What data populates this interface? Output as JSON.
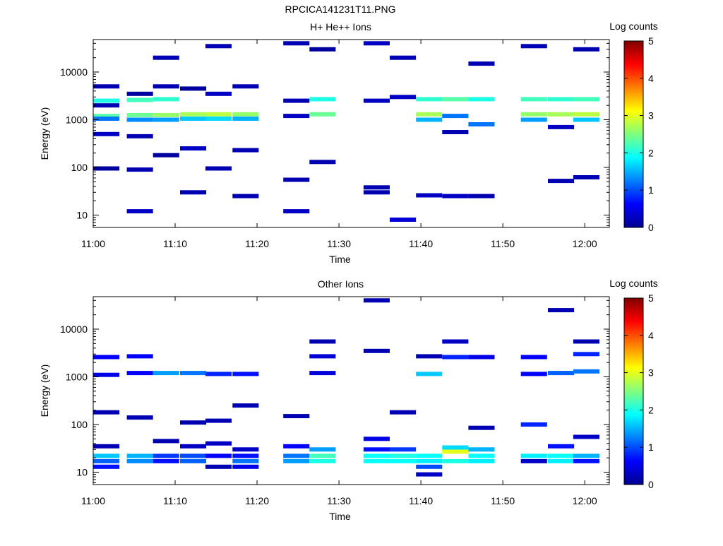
{
  "figure": {
    "title": "RPCICA141231T11.PNG"
  },
  "chart_data": [
    {
      "type": "heatmap",
      "title": "H+ He++ Ions",
      "xlabel": "Time",
      "ylabel": "Energy (eV)",
      "xlim": [
        "11:00",
        "12:03"
      ],
      "ylim": [
        5.5,
        48000
      ],
      "yscale": "log",
      "xticks": [
        "11:00",
        "11:10",
        "11:20",
        "11:30",
        "11:40",
        "11:50",
        "12:00"
      ],
      "yticks": [
        "10",
        "100",
        "1000",
        "10000"
      ],
      "colorbar": {
        "label": "Log counts",
        "range": [
          0,
          5
        ],
        "ticks": [
          "0",
          "1",
          "2",
          "3",
          "4",
          "5"
        ]
      },
      "time_bins_start_min": [
        0,
        4.1,
        7.3,
        10.6,
        13.7,
        17.0,
        23.2,
        26.4,
        29.6,
        33.0,
        36.2,
        39.4,
        42.6,
        45.8,
        49.0,
        52.2,
        55.5,
        58.6
      ],
      "bin_width_min": 3.2,
      "gaps": [
        "11:20-11:23",
        "11:49-11:52"
      ],
      "cells": [
        [
          0,
          2000,
          0.2
        ],
        [
          0,
          1200,
          2.3
        ],
        [
          0,
          1050,
          1.2
        ],
        [
          0,
          500,
          0.3
        ],
        [
          0,
          5000,
          0.2
        ],
        [
          0,
          2500,
          2.0
        ],
        [
          0,
          95,
          0.1
        ],
        [
          1,
          3500,
          0.1
        ],
        [
          1,
          2600,
          2.2
        ],
        [
          1,
          1250,
          2.4
        ],
        [
          1,
          1000,
          1.3
        ],
        [
          1,
          12,
          0.3
        ],
        [
          1,
          90,
          0.2
        ],
        [
          1,
          450,
          0.2
        ],
        [
          2,
          2700,
          2.1
        ],
        [
          2,
          1250,
          2.6
        ],
        [
          2,
          1000,
          1.4
        ],
        [
          2,
          5000,
          0.2
        ],
        [
          2,
          20000,
          0.2
        ],
        [
          2,
          180,
          0.1
        ],
        [
          3,
          1300,
          2.7
        ],
        [
          3,
          1050,
          1.6
        ],
        [
          3,
          4500,
          0.1
        ],
        [
          3,
          30,
          0.2
        ],
        [
          3,
          250,
          0.3
        ],
        [
          4,
          1300,
          2.8
        ],
        [
          4,
          1050,
          1.7
        ],
        [
          4,
          35000,
          0.2
        ],
        [
          4,
          3500,
          0.3
        ],
        [
          4,
          95,
          0.2
        ],
        [
          5,
          1300,
          2.6
        ],
        [
          5,
          1050,
          1.5
        ],
        [
          5,
          25,
          0.2
        ],
        [
          5,
          230,
          0.2
        ],
        [
          5,
          5000,
          0.2
        ],
        [
          6,
          1200,
          0.3
        ],
        [
          6,
          2500,
          0.2
        ],
        [
          6,
          12,
          0.3
        ],
        [
          6,
          55,
          0.2
        ],
        [
          6,
          40000,
          0.2
        ],
        [
          7,
          1300,
          2.4
        ],
        [
          7,
          2700,
          2.0
        ],
        [
          7,
          130,
          0.2
        ],
        [
          7,
          30000,
          0.1
        ],
        [
          9,
          38,
          0.2
        ],
        [
          9,
          30,
          0.2
        ],
        [
          9,
          2500,
          0.3
        ],
        [
          9,
          40000,
          0.3
        ],
        [
          10,
          8,
          0.4
        ],
        [
          10,
          3000,
          0.3
        ],
        [
          10,
          20000,
          0.2
        ],
        [
          11,
          1300,
          2.7
        ],
        [
          11,
          1000,
          1.5
        ],
        [
          11,
          2700,
          2.1
        ],
        [
          11,
          26,
          0.3
        ],
        [
          12,
          2700,
          2.3
        ],
        [
          12,
          1200,
          1.2
        ],
        [
          12,
          25,
          0.3
        ],
        [
          12,
          550,
          0.2
        ],
        [
          13,
          2700,
          2.0
        ],
        [
          13,
          800,
          1.2
        ],
        [
          13,
          25,
          0.2
        ],
        [
          13,
          15000,
          0.2
        ],
        [
          15,
          1300,
          2.6
        ],
        [
          15,
          1000,
          1.4
        ],
        [
          15,
          2700,
          2.2
        ],
        [
          15,
          35000,
          0.2
        ],
        [
          16,
          1300,
          2.7
        ],
        [
          16,
          2700,
          2.1
        ],
        [
          16,
          700,
          0.3
        ],
        [
          16,
          52,
          0.2
        ],
        [
          17,
          1300,
          2.8
        ],
        [
          17,
          2700,
          2.2
        ],
        [
          17,
          1000,
          1.6
        ],
        [
          17,
          30000,
          0.2
        ],
        [
          17,
          62,
          0.2
        ]
      ]
    },
    {
      "type": "heatmap",
      "title": "Other Ions",
      "xlabel": "Time",
      "ylabel": "Energy (eV)",
      "xlim": [
        "11:00",
        "12:03"
      ],
      "ylim": [
        5.5,
        48000
      ],
      "yscale": "log",
      "xticks": [
        "11:00",
        "11:10",
        "11:20",
        "11:30",
        "11:40",
        "11:50",
        "12:00"
      ],
      "yticks": [
        "10",
        "100",
        "1000",
        "10000"
      ],
      "colorbar": {
        "label": "Log counts",
        "range": [
          0,
          5
        ],
        "ticks": [
          "0",
          "1",
          "2",
          "3",
          "4",
          "5"
        ]
      },
      "time_bins_start_min": [
        0,
        4.1,
        7.3,
        10.6,
        13.7,
        17.0,
        23.2,
        26.4,
        29.6,
        33.0,
        36.2,
        39.4,
        42.6,
        45.8,
        49.0,
        52.2,
        55.5,
        58.6
      ],
      "bin_width_min": 3.2,
      "gaps": [
        "11:20-11:23",
        "11:49-11:52"
      ],
      "cells": [
        [
          0,
          22,
          1.6
        ],
        [
          0,
          17,
          1.1
        ],
        [
          0,
          13,
          0.7
        ],
        [
          0,
          2600,
          0.6
        ],
        [
          0,
          1100,
          0.5
        ],
        [
          0,
          35,
          0.2
        ],
        [
          0,
          180,
          0.2
        ],
        [
          1,
          22,
          1.5
        ],
        [
          1,
          17,
          1.3
        ],
        [
          1,
          2700,
          0.6
        ],
        [
          1,
          1200,
          0.6
        ],
        [
          1,
          140,
          0.2
        ],
        [
          2,
          22,
          0.9
        ],
        [
          2,
          17,
          0.7
        ],
        [
          2,
          1200,
          1.4
        ],
        [
          2,
          45,
          0.2
        ],
        [
          3,
          22,
          1.0
        ],
        [
          3,
          17,
          1.1
        ],
        [
          3,
          1200,
          1.2
        ],
        [
          3,
          35,
          0.3
        ],
        [
          3,
          110,
          0.2
        ],
        [
          4,
          40,
          0.3
        ],
        [
          4,
          22,
          0.6
        ],
        [
          4,
          13,
          0.2
        ],
        [
          4,
          1150,
          0.8
        ],
        [
          4,
          120,
          0.2
        ],
        [
          5,
          30,
          0.3
        ],
        [
          5,
          22,
          0.7
        ],
        [
          5,
          17,
          1.2
        ],
        [
          5,
          13,
          0.5
        ],
        [
          5,
          1150,
          0.7
        ],
        [
          5,
          250,
          0.2
        ],
        [
          6,
          35,
          0.6
        ],
        [
          6,
          22,
          1.2
        ],
        [
          6,
          17,
          1.4
        ],
        [
          6,
          150,
          0.2
        ],
        [
          7,
          22,
          2.2
        ],
        [
          7,
          17,
          2.0
        ],
        [
          7,
          30,
          1.4
        ],
        [
          7,
          2700,
          0.4
        ],
        [
          7,
          1200,
          0.4
        ],
        [
          7,
          5500,
          0.2
        ],
        [
          9,
          22,
          1.9
        ],
        [
          9,
          17,
          1.9
        ],
        [
          9,
          30,
          0.7
        ],
        [
          9,
          50,
          0.5
        ],
        [
          9,
          3500,
          0.2
        ],
        [
          9,
          40000,
          0.2
        ],
        [
          10,
          22,
          2.0
        ],
        [
          10,
          17,
          1.9
        ],
        [
          10,
          30,
          0.9
        ],
        [
          10,
          180,
          0.2
        ],
        [
          11,
          22,
          1.9
        ],
        [
          11,
          17,
          1.8
        ],
        [
          11,
          13,
          1.0
        ],
        [
          11,
          9,
          0.3
        ],
        [
          11,
          1150,
          1.6
        ],
        [
          11,
          2700,
          0.2
        ],
        [
          12,
          27,
          3.0
        ],
        [
          12,
          17,
          2.0
        ],
        [
          12,
          33,
          1.7
        ],
        [
          12,
          2600,
          0.8
        ],
        [
          12,
          5500,
          0.3
        ],
        [
          13,
          22,
          1.9
        ],
        [
          13,
          17,
          1.8
        ],
        [
          13,
          30,
          1.5
        ],
        [
          13,
          2600,
          0.5
        ],
        [
          13,
          85,
          0.2
        ],
        [
          15,
          22,
          1.8
        ],
        [
          15,
          17,
          0.3
        ],
        [
          15,
          100,
          0.8
        ],
        [
          15,
          2600,
          0.6
        ],
        [
          15,
          1150,
          0.6
        ],
        [
          16,
          22,
          1.9
        ],
        [
          16,
          17,
          1.8
        ],
        [
          16,
          35,
          0.7
        ],
        [
          16,
          1200,
          1.1
        ],
        [
          16,
          25000,
          0.2
        ],
        [
          17,
          22,
          1.5
        ],
        [
          17,
          17,
          0.7
        ],
        [
          17,
          55,
          0.3
        ],
        [
          17,
          3000,
          0.8
        ],
        [
          17,
          1300,
          1.2
        ],
        [
          17,
          5500,
          0.2
        ]
      ]
    }
  ]
}
